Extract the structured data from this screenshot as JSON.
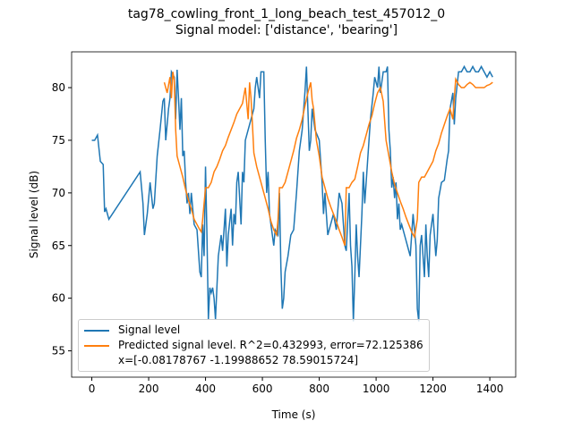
{
  "chart_data": {
    "type": "line",
    "title": "tag78_cowling_front_1_long_beach_test_457012_0",
    "subtitle": "Signal model: ['distance', 'bearing']",
    "x_label": "Time (s)",
    "y_label": "Signal level (dB)",
    "xlim": [
      -71,
      1491
    ],
    "ylim": [
      52.5,
      83.4
    ],
    "xticks": [
      0,
      200,
      400,
      600,
      800,
      1000,
      1200,
      1400
    ],
    "yticks": [
      55,
      60,
      65,
      70,
      75,
      80
    ],
    "legend": "lower left",
    "series": [
      {
        "name": "Signal level",
        "color": "#1f77b4",
        "x": [
          0,
          10,
          20,
          30,
          40,
          45,
          50,
          60,
          170,
          180,
          185,
          195,
          205,
          215,
          220,
          230,
          240,
          250,
          255,
          260,
          270,
          275,
          280,
          290,
          295,
          300,
          305,
          310,
          315,
          320,
          325,
          330,
          335,
          340,
          345,
          350,
          360,
          370,
          380,
          385,
          390,
          395,
          400,
          405,
          410,
          415,
          420,
          425,
          430,
          435,
          440,
          445,
          455,
          460,
          470,
          475,
          480,
          490,
          495,
          500,
          505,
          510,
          515,
          520,
          525,
          530,
          535,
          540,
          550,
          560,
          570,
          575,
          580,
          590,
          595,
          605,
          610,
          615,
          620,
          625,
          630,
          640,
          645,
          655,
          660,
          665,
          670,
          675,
          680,
          690,
          700,
          710,
          720,
          730,
          740,
          750,
          755,
          765,
          770,
          775,
          785,
          800,
          810,
          815,
          820,
          830,
          840,
          850,
          860,
          870,
          880,
          890,
          895,
          905,
          910,
          915,
          920,
          925,
          930,
          935,
          940,
          945,
          950,
          955,
          960,
          970,
          980,
          990,
          995,
          1000,
          1005,
          1010,
          1015,
          1025,
          1035,
          1040,
          1045,
          1050,
          1055,
          1060,
          1065,
          1070,
          1075,
          1080,
          1085,
          1090,
          1100,
          1110,
          1120,
          1130,
          1140,
          1145,
          1150,
          1155,
          1160,
          1170,
          1175,
          1180,
          1185,
          1190,
          1200,
          1210,
          1215,
          1220,
          1230,
          1240,
          1250,
          1255,
          1260,
          1270,
          1275,
          1280,
          1290,
          1300,
          1310,
          1320,
          1330,
          1340,
          1350,
          1360,
          1370,
          1380,
          1390,
          1400,
          1410
        ],
        "values": [
          75,
          75,
          75.5,
          73,
          72.7,
          68.2,
          68.5,
          67.5,
          72,
          69,
          66,
          68,
          71,
          68.5,
          69,
          73.5,
          76,
          78.7,
          79,
          75,
          78,
          79,
          81.5,
          81,
          77,
          81.7,
          79,
          76,
          79,
          73.5,
          74,
          71,
          69,
          70,
          68,
          70,
          67,
          66.5,
          62.5,
          62,
          67,
          64,
          72.5,
          66,
          58,
          61,
          60.5,
          61,
          60,
          58,
          61,
          64,
          66,
          64.5,
          68.5,
          63,
          66,
          68.5,
          65,
          68,
          67,
          71,
          72,
          69.5,
          67,
          72,
          71,
          75,
          76,
          77,
          78,
          80,
          81,
          79,
          81.5,
          81.5,
          75,
          70,
          72,
          68,
          67,
          65,
          66.5,
          66,
          70,
          63,
          59,
          60,
          62.5,
          64,
          66,
          66.5,
          70,
          74,
          76,
          79.7,
          82,
          74,
          75,
          78,
          76,
          75,
          71,
          68,
          70,
          66,
          67,
          68,
          66.5,
          70,
          69,
          65,
          64.5,
          70,
          65,
          63,
          57.8,
          62,
          67,
          64,
          62,
          65,
          68,
          72,
          69,
          73,
          77,
          79.5,
          81,
          80.5,
          80,
          82,
          79.5,
          81.5,
          81.5,
          82,
          76,
          74,
          70.5,
          71.5,
          69.5,
          71,
          67.5,
          69,
          66.5,
          67,
          66,
          65,
          64,
          68,
          65,
          59,
          57.8,
          65,
          66,
          62,
          67,
          64,
          62,
          66,
          68,
          64,
          65.5,
          69.5,
          71,
          71.2,
          73.2,
          74,
          78,
          79.5,
          76.5,
          79,
          81.5,
          81.5,
          82,
          81.5,
          81.5,
          82,
          81.5,
          81.5,
          82,
          81.5,
          81,
          81.5,
          81
        ]
      },
      {
        "name": "Predicted signal level. R^2=0.432993, error=72.125386\nx=[-0.08178767 -1.19988652 78.59015724]",
        "color": "#ff7f0e",
        "x": [
          255,
          260,
          265,
          275,
          280,
          285,
          290,
          295,
          300,
          310,
          320,
          330,
          340,
          350,
          360,
          370,
          380,
          385,
          390,
          395,
          400,
          410,
          420,
          430,
          440,
          450,
          460,
          470,
          480,
          490,
          500,
          510,
          520,
          530,
          540,
          545,
          550,
          555,
          560,
          565,
          570,
          580,
          590,
          600,
          610,
          620,
          630,
          640,
          650,
          655,
          660,
          670,
          680,
          690,
          700,
          710,
          720,
          730,
          740,
          750,
          760,
          770,
          775,
          780,
          790,
          800,
          810,
          820,
          830,
          840,
          850,
          860,
          870,
          880,
          890,
          895,
          905,
          915,
          925,
          935,
          945,
          955,
          965,
          975,
          985,
          995,
          1005,
          1015,
          1025,
          1035,
          1045,
          1055,
          1065,
          1075,
          1085,
          1095,
          1105,
          1115,
          1125,
          1135,
          1145,
          1150,
          1160,
          1170,
          1180,
          1190,
          1200,
          1210,
          1220,
          1230,
          1240,
          1250,
          1260,
          1270,
          1275,
          1280,
          1290,
          1300,
          1310,
          1320,
          1330,
          1340,
          1350,
          1360,
          1370,
          1380,
          1390,
          1400,
          1410
        ],
        "values": [
          80.5,
          80,
          79.5,
          81,
          79,
          81.5,
          80.7,
          76,
          73.5,
          72.5,
          71.5,
          70.3,
          69.3,
          68.5,
          67.5,
          67,
          66.5,
          66.3,
          67.5,
          69,
          70.5,
          70.5,
          71,
          72,
          72.5,
          73.2,
          74,
          74.5,
          75.3,
          76,
          76.7,
          77.5,
          78,
          78.5,
          80,
          78.5,
          77,
          80.5,
          79,
          76.5,
          73.8,
          72.5,
          71.5,
          70.5,
          69.5,
          68.5,
          67.3,
          66.5,
          66,
          67.5,
          70.5,
          70.5,
          71,
          72,
          73,
          74,
          75.2,
          76,
          77,
          78.3,
          79.5,
          80.5,
          78.8,
          78,
          75,
          73.5,
          71.5,
          70.5,
          69.5,
          68.7,
          68,
          67.3,
          66.5,
          65.8,
          65,
          70.5,
          70.5,
          71,
          71.3,
          72.5,
          73.8,
          74.5,
          75.5,
          76.5,
          77.3,
          78.5,
          79.5,
          80,
          78.7,
          75,
          73.5,
          72,
          70.8,
          70,
          69.2,
          68.5,
          67.7,
          67,
          66.3,
          65.8,
          67.5,
          71,
          71.5,
          71.5,
          72,
          72.5,
          73,
          74,
          74.7,
          75.7,
          76.5,
          77.3,
          78,
          77,
          79,
          80.8,
          80.3,
          80,
          80,
          80.3,
          80.5,
          80.3,
          80,
          80,
          80,
          80,
          80.2,
          80.3,
          80.5
        ]
      }
    ]
  }
}
